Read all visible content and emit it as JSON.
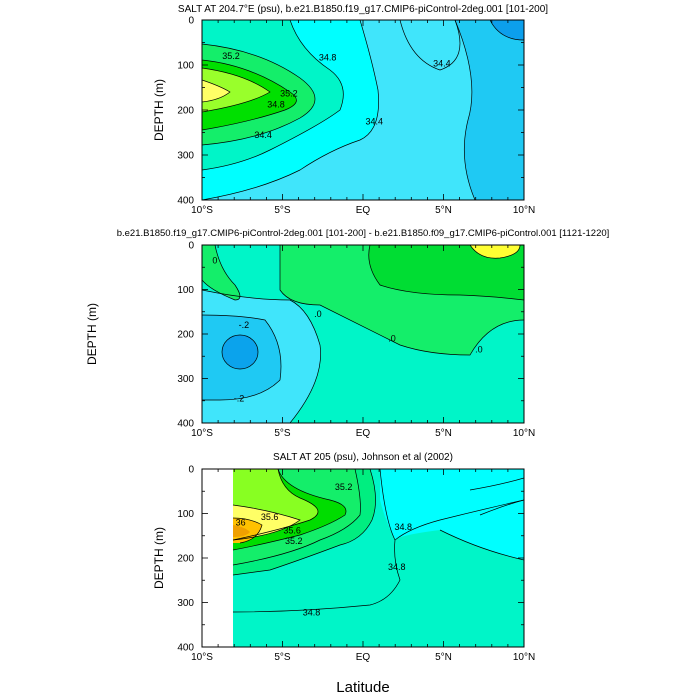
{
  "figure": {
    "xlabel": "Latitude"
  },
  "chart_data": [
    {
      "type": "contour",
      "title": "SALT AT 204.7°E (psu), b.e21.B1850.f19_g17.CMIP6-piControl-2deg.001 [101-200]",
      "ylabel": "DEPTH (m)",
      "x_ticks": [
        "10°S",
        "5°S",
        "EQ",
        "5°N",
        "10°N"
      ],
      "y_ticks": [
        "0",
        "100",
        "200",
        "300",
        "400"
      ],
      "xlim": [
        -10,
        10
      ],
      "ylim": [
        400,
        0
      ],
      "contour_labels": [
        {
          "text": "35.2",
          "lat": -8.2,
          "depth": 80
        },
        {
          "text": "35.2",
          "lat": -4.6,
          "depth": 163
        },
        {
          "text": "34.8",
          "lat": -5.4,
          "depth": 188
        },
        {
          "text": "34.8",
          "lat": -2.2,
          "depth": 83
        },
        {
          "text": "34.4",
          "lat": 4.9,
          "depth": 97
        },
        {
          "text": "34.4",
          "lat": -6.2,
          "depth": 255
        },
        {
          "text": "34.4",
          "lat": 0.7,
          "depth": 225
        }
      ]
    },
    {
      "type": "contour",
      "title": "b.e21.B1850.f19_g17.CMIP6-piControl-2deg.001 [101-200] - b.e21.B1850.f09_g17.CMIP6-piControl.001 [1121-1220]",
      "ylabel": "DEPTH (m)",
      "x_ticks": [
        "10°S",
        "5°S",
        "EQ",
        "5°N",
        "10°N"
      ],
      "y_ticks": [
        "0",
        "100",
        "200",
        "300",
        "400"
      ],
      "xlim": [
        -10,
        10
      ],
      "ylim": [
        400,
        0
      ],
      "contour_labels": [
        {
          "text": "0",
          "lat": -9.2,
          "depth": 35
        },
        {
          "text": ".0",
          "lat": -2.8,
          "depth": 155
        },
        {
          "text": ".0",
          "lat": 1.8,
          "depth": 210
        },
        {
          "text": ".0",
          "lat": 7.2,
          "depth": 235
        },
        {
          "text": "-.2",
          "lat": -7.4,
          "depth": 180
        },
        {
          "text": "-.2",
          "lat": -7.7,
          "depth": 345
        }
      ]
    },
    {
      "type": "contour",
      "title": "SALT AT 205 (psu), Johnson et al (2002)",
      "ylabel": "DEPTH (m)",
      "x_ticks": [
        "10°S",
        "5°S",
        "EQ",
        "5°N",
        "10°N"
      ],
      "y_ticks": [
        "0",
        "100",
        "200",
        "300",
        "400"
      ],
      "xlim": [
        -10,
        10
      ],
      "ylim": [
        400,
        0
      ],
      "data_start_lat": -8,
      "contour_labels": [
        {
          "text": "36",
          "lat": -7.6,
          "depth": 120
        },
        {
          "text": "35.6",
          "lat": -5.8,
          "depth": 108
        },
        {
          "text": "35.6",
          "lat": -4.4,
          "depth": 138
        },
        {
          "text": "35.2",
          "lat": -4.3,
          "depth": 162
        },
        {
          "text": "35.2",
          "lat": -1.2,
          "depth": 40
        },
        {
          "text": "34.8",
          "lat": 2.5,
          "depth": 130
        },
        {
          "text": "34.8",
          "lat": 2.1,
          "depth": 220
        },
        {
          "text": "34.8",
          "lat": -3.2,
          "depth": 322
        }
      ]
    }
  ]
}
